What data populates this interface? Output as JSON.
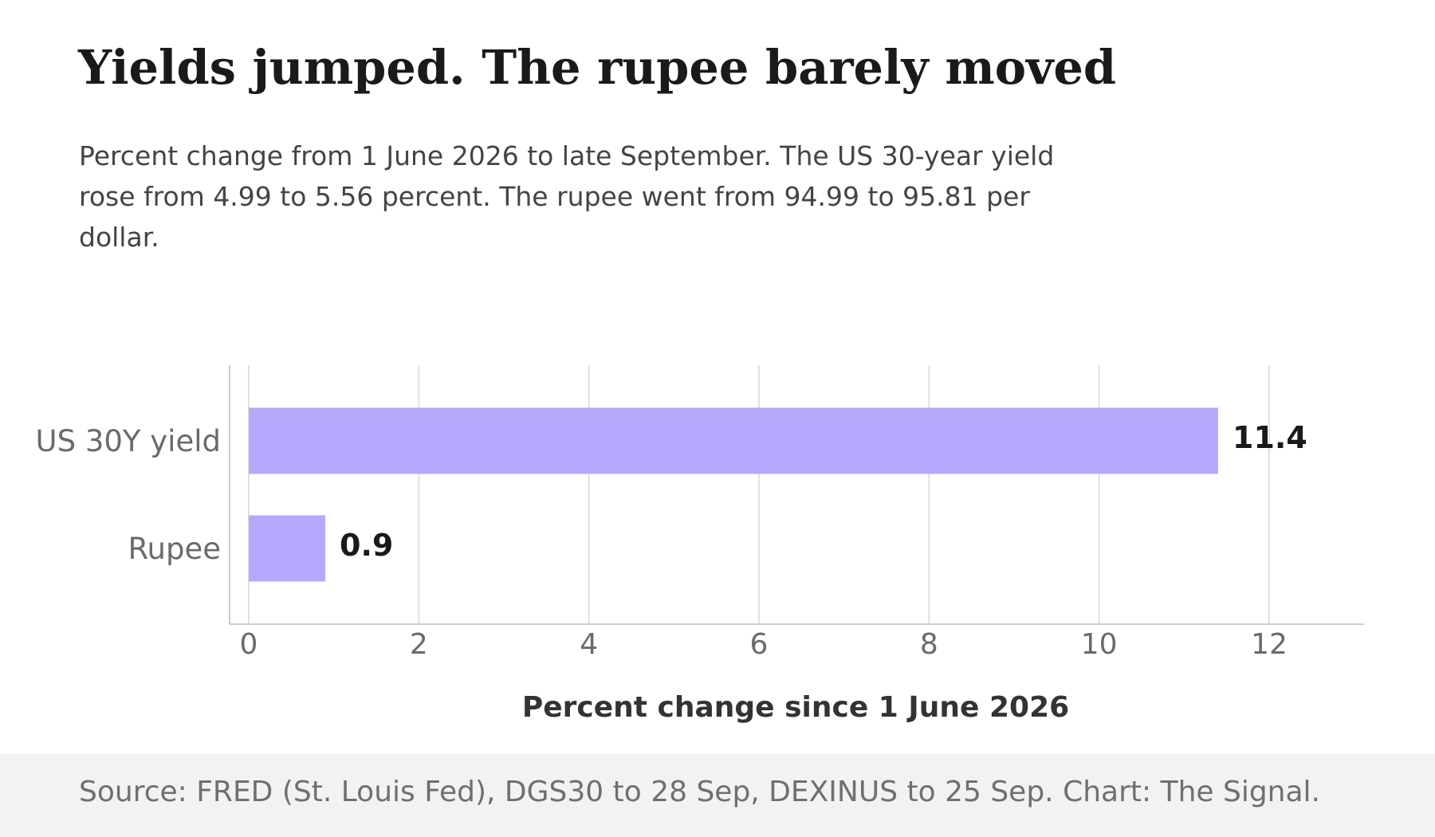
{
  "header": {
    "title": "Yields jumped. The rupee barely moved",
    "subtitle": "Percent change from 1 June 2026 to late September. The US 30-year yield rose from 4.99 to 5.56 percent. The rupee went from 94.99 to 95.81 per dollar."
  },
  "chart_data": {
    "type": "bar",
    "orientation": "horizontal",
    "title": "Yields jumped. The rupee barely moved",
    "subtitle": "Percent change from 1 June 2026 to late September. The US 30-year yield rose from 4.99 to 5.56 percent. The rupee went from 94.99 to 95.81 per dollar.",
    "categories": [
      "US 30Y yield",
      "Rupee"
    ],
    "values": [
      11.4,
      0.9
    ],
    "data_labels": [
      "11.4",
      "0.9"
    ],
    "xlabel": "Percent change since 1 June 2026",
    "ylabel": "",
    "xlim": [
      0,
      13
    ],
    "xticks": [
      0,
      2,
      4,
      6,
      8,
      10,
      12
    ],
    "grid": "vertical",
    "legend": "none",
    "colors": {
      "bar": "#b6a8fc",
      "grid": "#e0e0e0",
      "axis": "#cccccc",
      "tick_label": "#6a6a6a",
      "data_label": "#1a1a1a",
      "axis_title": "#333333"
    }
  },
  "footer": {
    "source": "Source: FRED (St. Louis Fed), DGS30 to 28 Sep, DEXINUS to 25 Sep. Chart: The Signal."
  }
}
